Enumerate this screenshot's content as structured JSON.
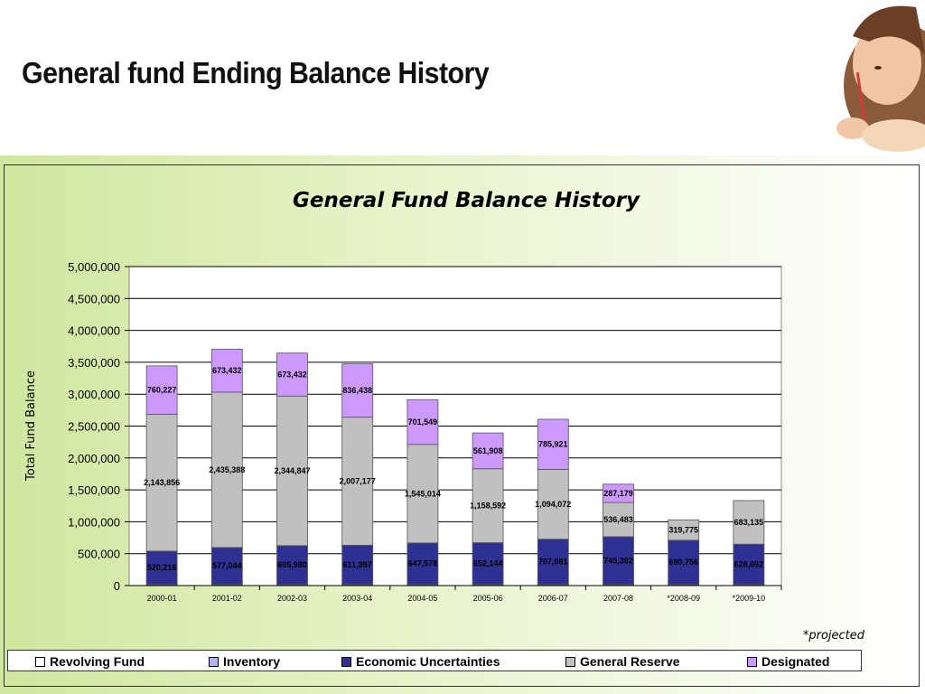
{
  "slide": {
    "title": "General fund Ending Balance History",
    "note": "*projected"
  },
  "chart_data": {
    "type": "bar",
    "stacked": true,
    "title": "General Fund Balance History",
    "xlabel": "",
    "ylabel": "Total Fund Balance",
    "ylim": [
      0,
      5000000
    ],
    "yticks": [
      0,
      500000,
      1000000,
      1500000,
      2000000,
      2500000,
      3000000,
      3500000,
      4000000,
      4500000,
      5000000
    ],
    "ytick_labels": [
      "0",
      "500,000",
      "1,000,000",
      "1,500,000",
      "2,000,000",
      "2,500,000",
      "3,000,000",
      "3,500,000",
      "4,000,000",
      "4,500,000",
      "5,000,000"
    ],
    "categories": [
      "2000-01",
      "2001-02",
      "2002-03",
      "2003-04",
      "2004-05",
      "2005-06",
      "2006-07",
      "2007-08",
      "*2008-09",
      "*2009-10"
    ],
    "grid": true,
    "legend_position": "bottom",
    "series": [
      {
        "name": "Revolving Fund",
        "color": "#ffffff",
        "values": [
          10000,
          10000,
          10000,
          10000,
          10000,
          10000,
          10000,
          10000,
          10000,
          10000
        ],
        "labels": [
          "",
          "",
          "",
          "",
          "",
          "",
          "",
          "",
          "",
          ""
        ]
      },
      {
        "name": "Inventory",
        "color": "#b3b3f0",
        "values": [
          10000,
          10000,
          10000,
          10000,
          10000,
          10000,
          10000,
          10000,
          10000,
          10000
        ],
        "labels": [
          "",
          "",
          "",
          "",
          "",
          "",
          "",
          "",
          "",
          ""
        ]
      },
      {
        "name": "Economic Uncertainties",
        "color": "#2e3192",
        "values": [
          520216,
          577044,
          605980,
          611897,
          647578,
          652144,
          707081,
          745392,
          690756,
          628692
        ],
        "labels": [
          "520,216",
          "577,044",
          "605,980",
          "611,897",
          "647,578",
          "652,144",
          "707,081",
          "745,392",
          "690,756",
          "628,692"
        ]
      },
      {
        "name": "General Reserve",
        "color": "#c0c0c0",
        "values": [
          2143856,
          2435388,
          2344847,
          2007177,
          1545014,
          1158592,
          1094072,
          536483,
          319775,
          683135
        ],
        "labels": [
          "2,143,856",
          "2,435,388",
          "2,344,847",
          "2,007,177",
          "1,545,014",
          "1,158,592",
          "1,094,072",
          "536,483",
          "319,775",
          "683,135"
        ]
      },
      {
        "name": "Designated",
        "color": "#cc99ff",
        "values": [
          760227,
          673432,
          673432,
          836438,
          701549,
          561908,
          785921,
          287179,
          0,
          0
        ],
        "labels": [
          "760,227",
          "673,432",
          "673,432",
          "836,438",
          "701,549",
          "561,908",
          "785,921",
          "287,179",
          "",
          ""
        ]
      }
    ]
  }
}
